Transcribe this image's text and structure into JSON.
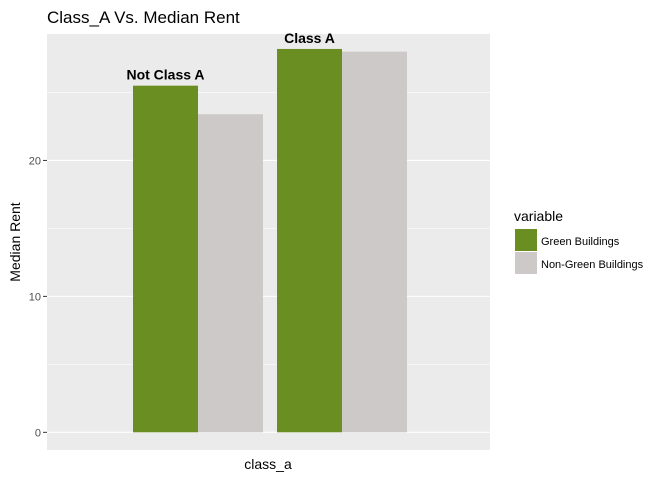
{
  "chart_data": {
    "type": "bar",
    "title": "Class_A Vs. Median Rent",
    "xlabel": "class_a",
    "ylabel": "Median Rent",
    "ylim": [
      -1.3,
      29.3
    ],
    "yticks": [
      0,
      10,
      20
    ],
    "grid": true,
    "groups": [
      {
        "label": "Not Class A",
        "values": [
          25.5,
          23.4
        ]
      },
      {
        "label": "Class A",
        "values": [
          28.2,
          28.0
        ]
      }
    ],
    "series": [
      {
        "name": "Green Buildings",
        "color": "#6b8e23"
      },
      {
        "name": "Non-Green Buildings",
        "color": "#cdc9c9"
      }
    ],
    "legend": {
      "title": "variable",
      "position": "right"
    },
    "panel_background": "#ebebeb",
    "grid_color": "#ffffff"
  }
}
